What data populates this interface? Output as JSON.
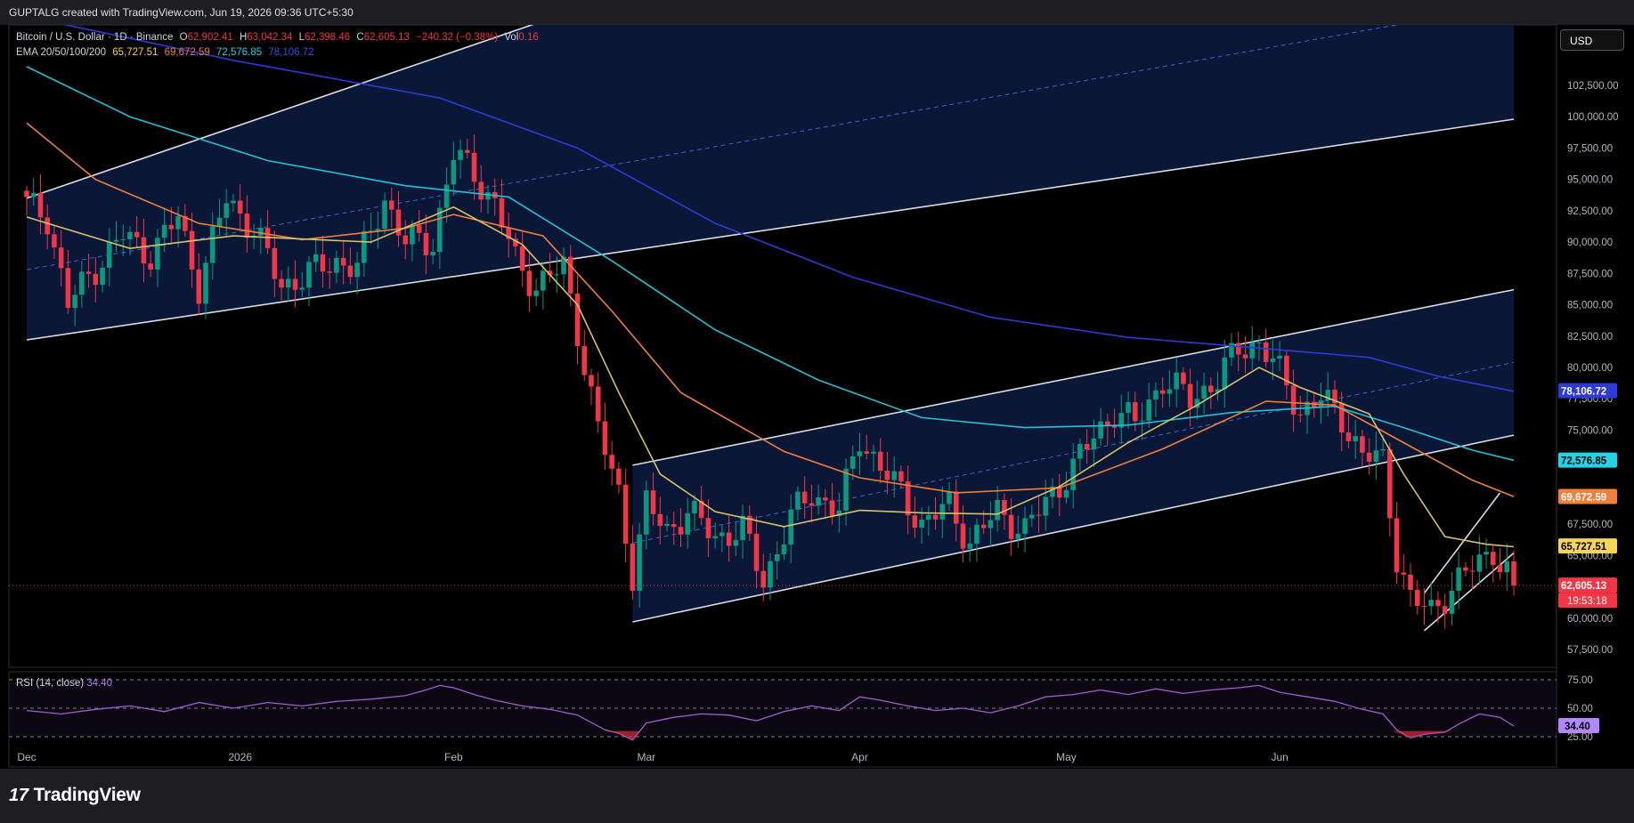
{
  "header": {
    "attribution": "GUPTALG created with TradingView.com, Jun 19, 2026 09:36 UTC+5:30"
  },
  "legend": {
    "symbol": "Bitcoin / U.S. Dollar · 1D · Binance",
    "open_label": "O",
    "open": "62,902.41",
    "high_label": "H",
    "high": "63,042.34",
    "low_label": "L",
    "low": "62,398.46",
    "close_label": "C",
    "close": "62,605.13",
    "change": "−240.32 (−0.38%)",
    "vol_label": "Vol",
    "vol": "0.16",
    "ema_label": "EMA 20/50/100/200",
    "ema20": "65,727.51",
    "ema50": "69,672.59",
    "ema100": "72,576.85",
    "ema200": "78,106.72"
  },
  "rsi_legend": {
    "label": "RSI (14, close)",
    "value": "34.40"
  },
  "currency_button": "USD",
  "brand": {
    "logo": "17",
    "name": "TradingView"
  },
  "colors": {
    "bg": "#000000",
    "up": "#089981",
    "down": "#f23645",
    "ema20": "#d6c26b",
    "ema50": "#f0803c",
    "ema100": "#22c1d6",
    "ema200": "#2c3bd6",
    "channel_fill": "#0c1a3d",
    "rsi": "#9c5fd1"
  },
  "chart_data": {
    "type": "candlestick",
    "title": "Bitcoin / U.S. Dollar · 1D · Binance",
    "y_ticks": [
      "102,500.00",
      "100,000.00",
      "97,500.00",
      "95,000.00",
      "92,500.00",
      "90,000.00",
      "87,500.00",
      "85,000.00",
      "82,500.00",
      "80,000.00",
      "77,500.00",
      "75,000.00",
      "72,500.00",
      "70,000.00",
      "67,500.00",
      "65,000.00",
      "62,500.00",
      "60,000.00",
      "57,500.00"
    ],
    "y_tick_values": [
      102500,
      100000,
      97500,
      95000,
      92500,
      90000,
      87500,
      85000,
      82500,
      80000,
      77500,
      75000,
      72500,
      70000,
      67500,
      65000,
      62500,
      60000,
      57500
    ],
    "x_labels": [
      "Dec",
      "2026",
      "Feb",
      "Mar",
      "Apr",
      "May",
      "Jun"
    ],
    "x_label_days": [
      0,
      31,
      62,
      90,
      121,
      151,
      182
    ],
    "x_axis_start": "2025-11-15",
    "last_day": 216,
    "rsi_ticks": [
      "75.00",
      "50.00",
      "25.00"
    ],
    "rsi_tick_values": [
      75,
      50,
      25
    ],
    "price_badges": [
      {
        "name": "ema200",
        "text": "78,106.72",
        "value": 78106.72,
        "bg": "#2c3bd6",
        "fg": "#ffffff"
      },
      {
        "name": "ema100",
        "text": "72,576.85",
        "value": 72576.85,
        "bg": "#22d4e6",
        "fg": "#000000"
      },
      {
        "name": "ema50",
        "text": "69,672.59",
        "value": 69672.59,
        "bg": "#f0803c",
        "fg": "#ffffff"
      },
      {
        "name": "ema20",
        "text": "65,727.51",
        "value": 65727.51,
        "bg": "#f6d55b",
        "fg": "#000000"
      },
      {
        "name": "last",
        "text": "62,605.13",
        "value": 62605.13,
        "bg": "#f23645",
        "fg": "#ffffff"
      }
    ],
    "countdown": "19:53:18",
    "rsi_badge": "34.40",
    "rsi_last": 34.4,
    "anchors": [
      [
        0,
        93000
      ],
      [
        3,
        92000
      ],
      [
        6,
        85000
      ],
      [
        10,
        88000
      ],
      [
        14,
        90500
      ],
      [
        18,
        89000
      ],
      [
        22,
        92000
      ],
      [
        25,
        86500
      ],
      [
        29,
        93500
      ],
      [
        33,
        91000
      ],
      [
        37,
        86500
      ],
      [
        41,
        87500
      ],
      [
        45,
        88500
      ],
      [
        48,
        88000
      ],
      [
        52,
        93500
      ],
      [
        55,
        90000
      ],
      [
        59,
        90000
      ],
      [
        62,
        97000
      ],
      [
        65,
        95500
      ],
      [
        68,
        93000
      ],
      [
        71,
        88500
      ],
      [
        74,
        86500
      ],
      [
        78,
        88000
      ],
      [
        80,
        83000
      ],
      [
        83,
        75000
      ],
      [
        86,
        70000
      ],
      [
        88,
        63500
      ],
      [
        90,
        69000
      ],
      [
        93,
        67000
      ],
      [
        96,
        68500
      ],
      [
        100,
        66500
      ],
      [
        104,
        67000
      ],
      [
        107,
        63000
      ],
      [
        111,
        68000
      ],
      [
        114,
        70000
      ],
      [
        118,
        68500
      ],
      [
        121,
        74500
      ],
      [
        124,
        72000
      ],
      [
        127,
        70000
      ],
      [
        130,
        67500
      ],
      [
        134,
        69000
      ],
      [
        137,
        66000
      ],
      [
        141,
        68500
      ],
      [
        145,
        67000
      ],
      [
        149,
        70000
      ],
      [
        152,
        72000
      ],
      [
        155,
        74500
      ],
      [
        158,
        76500
      ],
      [
        161,
        75500
      ],
      [
        165,
        79000
      ],
      [
        169,
        77500
      ],
      [
        173,
        79000
      ],
      [
        176,
        81500
      ],
      [
        179,
        82000
      ],
      [
        182,
        79500
      ],
      [
        185,
        76500
      ],
      [
        188,
        77500
      ],
      [
        191,
        76000
      ],
      [
        194,
        73000
      ],
      [
        197,
        72500
      ],
      [
        199,
        65000
      ],
      [
        201,
        61500
      ],
      [
        204,
        60500
      ],
      [
        207,
        62500
      ],
      [
        210,
        64000
      ],
      [
        213,
        65500
      ],
      [
        216,
        62600
      ]
    ],
    "ema20": [
      [
        0,
        92000
      ],
      [
        15,
        89500
      ],
      [
        30,
        90500
      ],
      [
        50,
        90000
      ],
      [
        62,
        92800
      ],
      [
        72,
        89800
      ],
      [
        80,
        85000
      ],
      [
        86,
        78000
      ],
      [
        92,
        71500
      ],
      [
        100,
        68500
      ],
      [
        110,
        67300
      ],
      [
        121,
        68600
      ],
      [
        130,
        68400
      ],
      [
        141,
        68300
      ],
      [
        150,
        70500
      ],
      [
        160,
        74000
      ],
      [
        170,
        77000
      ],
      [
        179,
        80000
      ],
      [
        185,
        78400
      ],
      [
        195,
        76300
      ],
      [
        200,
        71500
      ],
      [
        206,
        66500
      ],
      [
        212,
        65900
      ],
      [
        216,
        65700
      ]
    ],
    "ema50": [
      [
        0,
        99500
      ],
      [
        10,
        95000
      ],
      [
        25,
        91500
      ],
      [
        40,
        90200
      ],
      [
        55,
        91100
      ],
      [
        62,
        92200
      ],
      [
        75,
        90500
      ],
      [
        85,
        84500
      ],
      [
        95,
        78000
      ],
      [
        110,
        73300
      ],
      [
        121,
        71200
      ],
      [
        135,
        70000
      ],
      [
        150,
        70400
      ],
      [
        165,
        73500
      ],
      [
        180,
        77300
      ],
      [
        190,
        77000
      ],
      [
        200,
        74000
      ],
      [
        210,
        71000
      ],
      [
        216,
        69700
      ]
    ],
    "ema100": [
      [
        0,
        104000
      ],
      [
        15,
        100000
      ],
      [
        35,
        96500
      ],
      [
        55,
        94500
      ],
      [
        70,
        93600
      ],
      [
        85,
        88500
      ],
      [
        100,
        83000
      ],
      [
        115,
        79000
      ],
      [
        130,
        76000
      ],
      [
        145,
        75200
      ],
      [
        160,
        75400
      ],
      [
        175,
        76400
      ],
      [
        190,
        76900
      ],
      [
        200,
        75200
      ],
      [
        210,
        73400
      ],
      [
        216,
        72600
      ]
    ],
    "ema200": [
      [
        0,
        108000
      ],
      [
        30,
        104500
      ],
      [
        60,
        101500
      ],
      [
        80,
        97500
      ],
      [
        100,
        91500
      ],
      [
        120,
        87200
      ],
      [
        140,
        84000
      ],
      [
        160,
        82400
      ],
      [
        180,
        81500
      ],
      [
        195,
        80800
      ],
      [
        205,
        79300
      ],
      [
        216,
        78100
      ]
    ],
    "rsi": [
      [
        0,
        48
      ],
      [
        5,
        45
      ],
      [
        10,
        49
      ],
      [
        15,
        52
      ],
      [
        20,
        47
      ],
      [
        25,
        55
      ],
      [
        30,
        50
      ],
      [
        35,
        55
      ],
      [
        40,
        52
      ],
      [
        45,
        56
      ],
      [
        50,
        58
      ],
      [
        55,
        61
      ],
      [
        58,
        66
      ],
      [
        60,
        70
      ],
      [
        62,
        68
      ],
      [
        65,
        62
      ],
      [
        68,
        57
      ],
      [
        72,
        52
      ],
      [
        76,
        49
      ],
      [
        80,
        44
      ],
      [
        84,
        31
      ],
      [
        86,
        28
      ],
      [
        88,
        22
      ],
      [
        90,
        37
      ],
      [
        94,
        42
      ],
      [
        98,
        45
      ],
      [
        102,
        44
      ],
      [
        106,
        39
      ],
      [
        110,
        47
      ],
      [
        114,
        52
      ],
      [
        118,
        48
      ],
      [
        121,
        60
      ],
      [
        124,
        57
      ],
      [
        128,
        52
      ],
      [
        132,
        48
      ],
      [
        136,
        50
      ],
      [
        140,
        46
      ],
      [
        144,
        52
      ],
      [
        148,
        60
      ],
      [
        152,
        62
      ],
      [
        156,
        66
      ],
      [
        160,
        62
      ],
      [
        164,
        67
      ],
      [
        168,
        63
      ],
      [
        172,
        66
      ],
      [
        176,
        68
      ],
      [
        179,
        70
      ],
      [
        182,
        64
      ],
      [
        186,
        60
      ],
      [
        190,
        56
      ],
      [
        194,
        49
      ],
      [
        197,
        45
      ],
      [
        199,
        31
      ],
      [
        201,
        24
      ],
      [
        203,
        27
      ],
      [
        206,
        29
      ],
      [
        208,
        36
      ],
      [
        211,
        45
      ],
      [
        214,
        42
      ],
      [
        216,
        34.4
      ]
    ],
    "channels": [
      {
        "name": "upper-channel",
        "upper": [
          [
            0,
            93500
          ],
          [
            130,
            118000
          ]
        ],
        "lower": [
          [
            0,
            82200
          ],
          [
            216,
            99800
          ]
        ],
        "upper_line_end": [
          130,
          118000
        ],
        "fill_to": [
          216,
          99800
        ],
        "mid": [
          [
            0,
            87800
          ],
          [
            216,
            109000
          ]
        ]
      },
      {
        "name": "middle-channel",
        "upper": [
          [
            88,
            72200
          ],
          [
            216,
            86200
          ]
        ],
        "lower": [
          [
            88,
            59700
          ],
          [
            216,
            74600
          ]
        ],
        "mid": [
          [
            88,
            66000
          ],
          [
            216,
            80400
          ]
        ]
      },
      {
        "name": "flag-channel",
        "upper": [
          [
            203,
            62000
          ],
          [
            214,
            70000
          ]
        ],
        "lower": [
          [
            203,
            59000
          ],
          [
            216,
            65200
          ]
        ]
      }
    ]
  }
}
